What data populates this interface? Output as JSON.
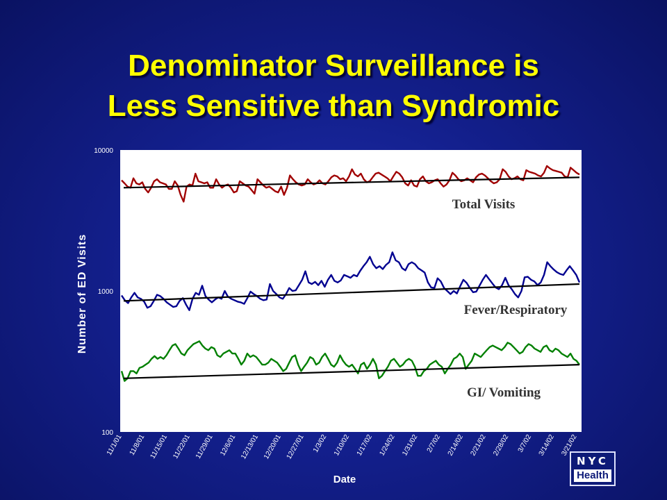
{
  "slide": {
    "title_line1": "Denominator Surveillance is",
    "title_line2": "Less Sensitive than Syndromic"
  },
  "logo": {
    "top": "NYC",
    "bottom": "Health"
  },
  "chart_data": {
    "type": "line",
    "title": "",
    "xlabel": "Date",
    "ylabel": "Number of ED Visits",
    "y_scale": "log",
    "ylim": [
      100,
      10000
    ],
    "y_ticks": [
      "100",
      "1000",
      "10000"
    ],
    "x_ticks": [
      "11/1/01",
      "11/8/01",
      "11/15/01",
      "11/22/01",
      "11/29/01",
      "12/6/01",
      "12/13/01",
      "12/20/01",
      "12/27/01",
      "1/3/02",
      "1/10/02",
      "1/17/02",
      "1/24/02",
      "1/31/02",
      "2/7/02",
      "2/14/02",
      "2/21/02",
      "2/28/02",
      "3/7/02",
      "3/14/02",
      "3/21/02"
    ],
    "x_start": "11/1/01",
    "grid": false,
    "series": [
      {
        "name": "Total Visits",
        "color": "#a00000",
        "baseline_start": 5400,
        "baseline_end": 6400,
        "values": [
          6100,
          5800,
          5500,
          5400,
          6300,
          5800,
          5700,
          5900,
          5300,
          5000,
          5400,
          6000,
          6200,
          5900,
          5800,
          5700,
          5300,
          5300,
          6000,
          5600,
          4800,
          4300,
          5500,
          5700,
          5600,
          6800,
          6000,
          5900,
          5800,
          5900,
          5400,
          5400,
          6200,
          5700,
          5400,
          5600,
          5700,
          5400,
          5000,
          5100,
          6000,
          5800,
          5600,
          5500,
          5200,
          4900,
          6200,
          5900,
          5600,
          5400,
          5500,
          5300,
          5100,
          5000,
          5500,
          4800,
          5400,
          6600,
          6200,
          5900,
          5700,
          5600,
          5700,
          6200,
          5900,
          5700,
          5800,
          6100,
          5800,
          5700,
          6000,
          6400,
          6600,
          6500,
          6200,
          6300,
          6000,
          6500,
          7300,
          6700,
          6500,
          6800,
          6200,
          5900,
          6000,
          6400,
          6800,
          6900,
          6700,
          6500,
          6300,
          6000,
          6500,
          7000,
          6800,
          6400,
          5800,
          5600,
          6100,
          5600,
          5500,
          6200,
          6500,
          6000,
          5800,
          5900,
          6100,
          6200,
          5800,
          5500,
          5700,
          6100,
          6900,
          6600,
          6200,
          6000,
          6100,
          6300,
          6100,
          5900,
          6400,
          6700,
          6800,
          6600,
          6300,
          6000,
          5800,
          5900,
          6200,
          7300,
          7000,
          6500,
          6200,
          6300,
          6500,
          6200,
          6100,
          7200,
          7000,
          6900,
          6800,
          6600,
          6500,
          6900,
          7700,
          7400,
          7200,
          7100,
          7000,
          6900,
          6500,
          6400,
          7500,
          7200,
          6900,
          6700
        ]
      },
      {
        "name": "Fever/Respiratory",
        "color": "#000090",
        "baseline_start": 850,
        "baseline_end": 1120,
        "values": [
          930,
          860,
          820,
          900,
          970,
          900,
          880,
          840,
          760,
          780,
          850,
          940,
          920,
          880,
          830,
          800,
          770,
          780,
          850,
          890,
          800,
          730,
          880,
          970,
          940,
          1090,
          920,
          870,
          830,
          870,
          900,
          880,
          1000,
          910,
          880,
          860,
          840,
          830,
          810,
          890,
          990,
          950,
          920,
          880,
          860,
          870,
          1120,
          1000,
          950,
          900,
          880,
          950,
          1050,
          1000,
          1010,
          1100,
          1200,
          1380,
          1150,
          1120,
          1160,
          1100,
          1180,
          1070,
          1200,
          1300,
          1180,
          1150,
          1190,
          1300,
          1270,
          1240,
          1300,
          1270,
          1390,
          1500,
          1600,
          1750,
          1550,
          1450,
          1500,
          1430,
          1530,
          1600,
          1880,
          1650,
          1600,
          1450,
          1400,
          1550,
          1600,
          1550,
          1450,
          1400,
          1350,
          1150,
          1060,
          1050,
          1230,
          1170,
          1050,
          1000,
          950,
          1000,
          960,
          1080,
          1200,
          1140,
          1050,
          980,
          990,
          1090,
          1200,
          1300,
          1210,
          1130,
          1060,
          1030,
          1100,
          1240,
          1100,
          1030,
          950,
          900,
          1000,
          1250,
          1260,
          1200,
          1170,
          1100,
          1150,
          1300,
          1600,
          1500,
          1420,
          1360,
          1320,
          1300,
          1400,
          1500,
          1400,
          1300,
          1150
        ]
      },
      {
        "name": "GI/ Vomiting",
        "color": "#008000",
        "baseline_start": 240,
        "baseline_end": 300,
        "values": [
          270,
          230,
          240,
          270,
          270,
          260,
          285,
          290,
          300,
          310,
          330,
          345,
          330,
          340,
          330,
          350,
          380,
          410,
          420,
          390,
          360,
          350,
          380,
          400,
          420,
          430,
          440,
          410,
          390,
          380,
          400,
          390,
          350,
          340,
          360,
          370,
          380,
          360,
          360,
          330,
          300,
          320,
          360,
          340,
          350,
          340,
          320,
          300,
          300,
          310,
          330,
          320,
          310,
          290,
          270,
          280,
          310,
          340,
          350,
          300,
          270,
          290,
          310,
          340,
          330,
          300,
          310,
          340,
          360,
          330,
          300,
          290,
          310,
          350,
          320,
          300,
          290,
          300,
          280,
          260,
          300,
          310,
          280,
          300,
          330,
          300,
          240,
          250,
          270,
          290,
          320,
          330,
          310,
          290,
          300,
          320,
          330,
          320,
          290,
          250,
          250,
          270,
          280,
          300,
          310,
          320,
          300,
          290,
          260,
          280,
          300,
          330,
          340,
          360,
          340,
          280,
          300,
          320,
          360,
          350,
          340,
          360,
          380,
          400,
          410,
          400,
          390,
          380,
          400,
          430,
          420,
          400,
          380,
          360,
          370,
          400,
          420,
          410,
          390,
          380,
          370,
          400,
          410,
          380,
          370,
          390,
          380,
          360,
          350,
          340,
          360,
          330,
          320,
          300
        ]
      }
    ]
  }
}
